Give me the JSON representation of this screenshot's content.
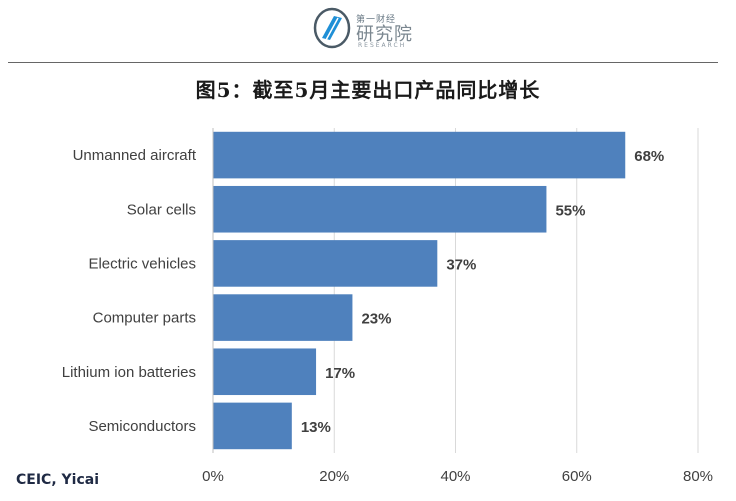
{
  "logo": {
    "cn_small": "第一财经",
    "cn_big": "研究院",
    "en": "RESEARCH"
  },
  "title": "图5：截至5月主要出口产品同比增长",
  "source": "CEIC, Yicai",
  "colors": {
    "bar": "#4f81bd",
    "grid": "#d9d9d9",
    "label": "#404040"
  },
  "chart_data": {
    "type": "bar",
    "orientation": "horizontal",
    "categories": [
      "Unmanned aircraft",
      "Solar cells",
      "Electric vehicles",
      "Computer parts",
      "Lithium ion batteries",
      "Semiconductors"
    ],
    "values": [
      68,
      55,
      37,
      23,
      17,
      13
    ],
    "value_labels": [
      "68%",
      "55%",
      "37%",
      "23%",
      "17%",
      "13%"
    ],
    "xlim": [
      0,
      80
    ],
    "xticks": [
      0,
      20,
      40,
      60,
      80
    ],
    "xtick_labels": [
      "0%",
      "20%",
      "40%",
      "60%",
      "80%"
    ],
    "grid": true,
    "legend": "none"
  }
}
